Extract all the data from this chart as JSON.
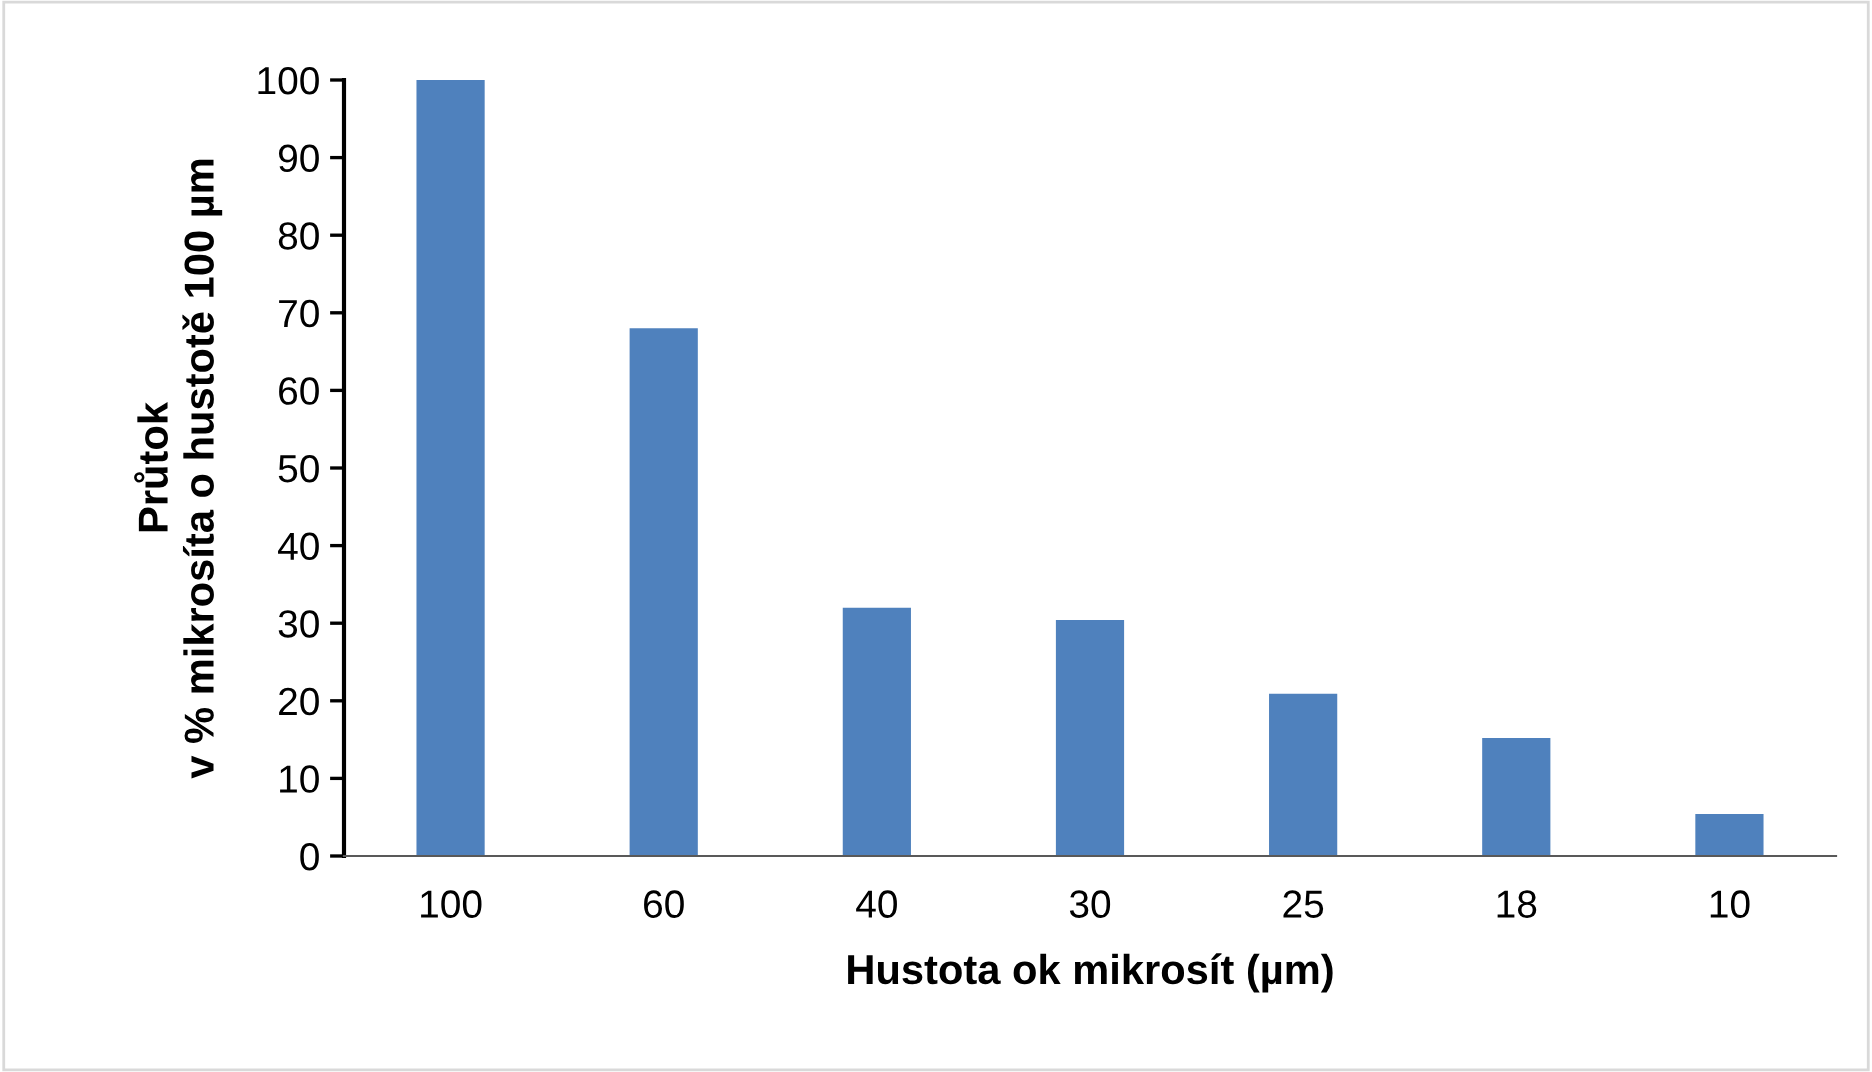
{
  "chart_data": {
    "type": "bar",
    "xlabel": "Hustota ok mikrosít (µm)",
    "ylabel": "Průtok\nv % mikrosíta o hustotě 100 µm",
    "categories": [
      "100",
      "60",
      "40",
      "30",
      "25",
      "18",
      "10"
    ],
    "values": [
      100,
      68,
      32,
      30.4,
      20.9,
      15.2,
      5.4
    ],
    "color": "#4f81bd",
    "ylim": [
      0,
      100
    ],
    "yticks": [
      0,
      10,
      20,
      30,
      40,
      50,
      60,
      70,
      80,
      90,
      100
    ],
    "grid": false,
    "legend": false
  }
}
